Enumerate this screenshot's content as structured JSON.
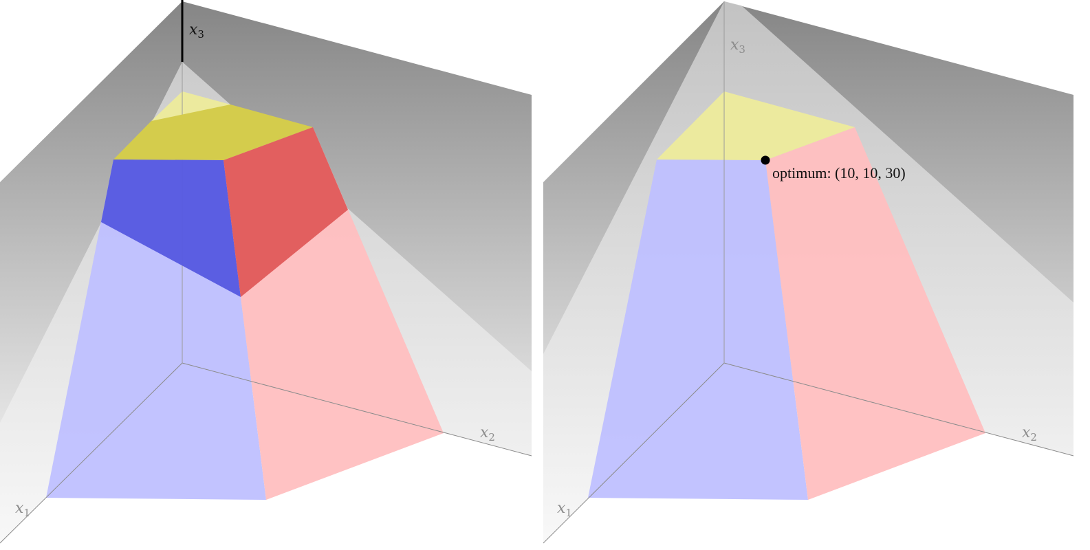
{
  "colors": {
    "wall_dark": "#8a8a8a",
    "wall_light": "#ffffff",
    "face_blue": "#bfc0ff",
    "face_red": "#ffbfc0",
    "face_yellow": "#ecea9e",
    "solid_blue": "#5558e0",
    "solid_red": "#e05a5a",
    "solid_yellow": "#d4cc4c",
    "axis_grey": "#8c8c8c"
  },
  "left_panel": {
    "x1_label": "x",
    "x1_sub": "1",
    "x2_label": "x",
    "x2_sub": "2",
    "x3_label": "x",
    "x3_sub": "3"
  },
  "right_panel": {
    "x1_label": "x",
    "x1_sub": "1",
    "x2_label": "x",
    "x2_sub": "2",
    "x3_label": "x",
    "x3_sub": "3",
    "optimum_label": "optimum:  (10, 10, 30)"
  }
}
